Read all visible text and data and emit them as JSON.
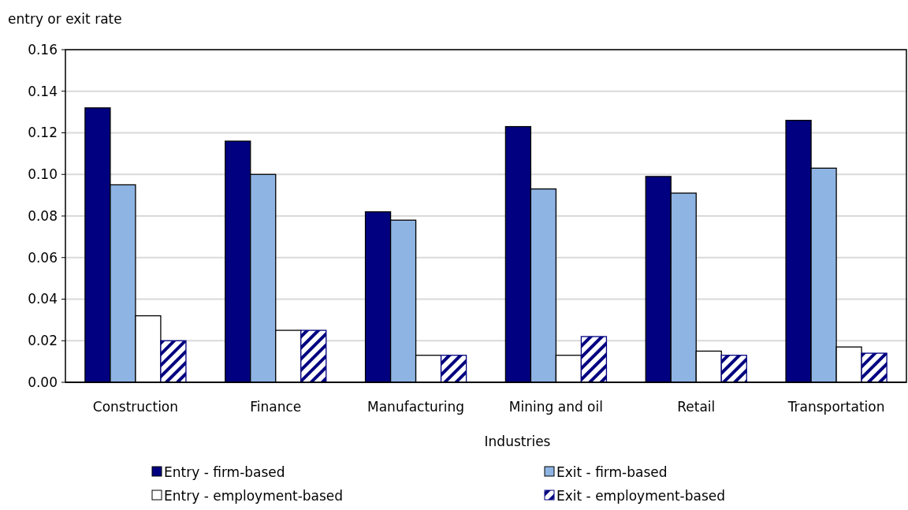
{
  "chart_data": {
    "type": "bar",
    "ylabel": "entry or exit rate",
    "xlabel": "Industries",
    "categories": [
      "Construction",
      "Finance",
      "Manufacturing",
      "Mining and oil",
      "Retail",
      "Transportation"
    ],
    "series": [
      {
        "name": "Entry - firm-based",
        "color": "#000080",
        "values": [
          0.132,
          0.116,
          0.082,
          0.123,
          0.099,
          0.126
        ]
      },
      {
        "name": "Exit - firm-based",
        "color": "#8eb4e3",
        "values": [
          0.095,
          0.1,
          0.078,
          0.093,
          0.091,
          0.103
        ]
      },
      {
        "name": "Entry - employment-based",
        "color": "#ffffff",
        "values": [
          0.032,
          0.025,
          0.013,
          0.013,
          0.015,
          0.017
        ]
      },
      {
        "name": "Exit - employment-based",
        "color": "#000080",
        "values": [
          0.02,
          0.025,
          0.013,
          0.022,
          0.013,
          0.014
        ]
      }
    ],
    "ylim": [
      0,
      0.16
    ],
    "yticks": [
      {
        "value": 0,
        "label": "0.00"
      },
      {
        "value": 0.02,
        "label": "0.02"
      },
      {
        "value": 0.04,
        "label": "0.04"
      },
      {
        "value": 0.06,
        "label": "0.06"
      },
      {
        "value": 0.08,
        "label": "0.08"
      },
      {
        "value": 0.1,
        "label": "0.10"
      },
      {
        "value": 0.12,
        "label": "0.12"
      },
      {
        "value": 0.14,
        "label": "0.14"
      },
      {
        "value": 0.16,
        "label": "0.16"
      }
    ],
    "grid": "y",
    "legend": "bottom"
  }
}
